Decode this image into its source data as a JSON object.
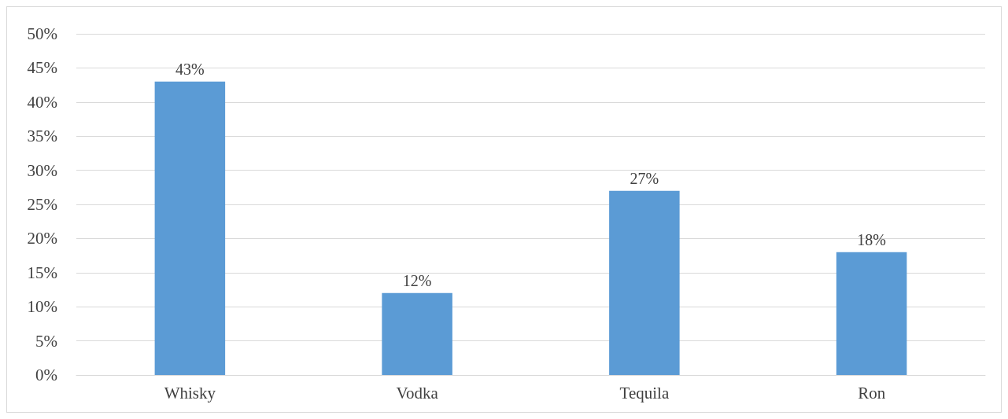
{
  "chart_data": {
    "type": "bar",
    "categories": [
      "Whisky",
      "Vodka",
      "Tequila",
      "Ron"
    ],
    "values": [
      43,
      12,
      27,
      18
    ],
    "value_labels": [
      "43%",
      "12%",
      "27%",
      "18%"
    ],
    "color": "#5b9bd5",
    "ylim": [
      0,
      50
    ],
    "yticks": [
      {
        "value": 0,
        "label": "0%"
      },
      {
        "value": 5,
        "label": "5%"
      },
      {
        "value": 10,
        "label": "10%"
      },
      {
        "value": 15,
        "label": "15%"
      },
      {
        "value": 20,
        "label": "20%"
      },
      {
        "value": 25,
        "label": "25%"
      },
      {
        "value": 30,
        "label": "30%"
      },
      {
        "value": 35,
        "label": "35%"
      },
      {
        "value": 40,
        "label": "40%"
      },
      {
        "value": 45,
        "label": "45%"
      },
      {
        "value": 50,
        "label": "50%"
      }
    ],
    "grid": "y"
  }
}
